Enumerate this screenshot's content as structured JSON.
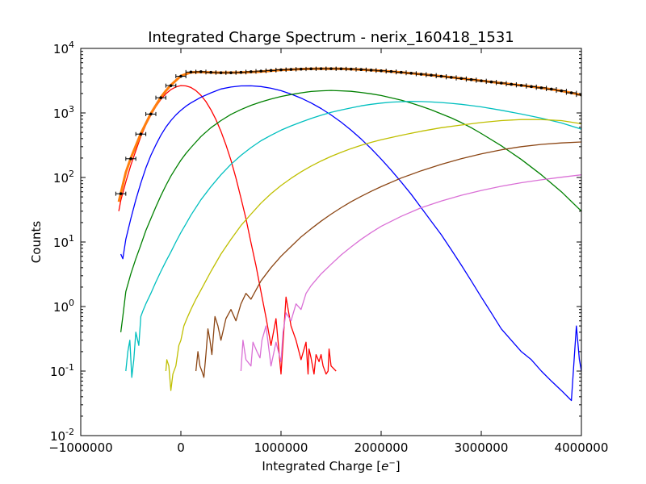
{
  "chart_data": {
    "type": "line",
    "title": "Integrated Charge Spectrum - nerix_160418_1531",
    "xlabel_prefix": "Integrated Charge [",
    "xlabel_math": "e",
    "xlabel_sup": "−",
    "xlabel_suffix": "]",
    "ylabel": "Counts",
    "y_scale": "log",
    "xlim": [
      -1000000,
      4000000
    ],
    "ylim": [
      0.01,
      10000
    ],
    "x_ticks": [
      {
        "value": -1000000,
        "label": "−1000000"
      },
      {
        "value": 0,
        "label": "0"
      },
      {
        "value": 1000000,
        "label": "1000000"
      },
      {
        "value": 2000000,
        "label": "2000000"
      },
      {
        "value": 3000000,
        "label": "3000000"
      },
      {
        "value": 4000000,
        "label": "4000000"
      }
    ],
    "y_ticks": [
      {
        "value": 0.01,
        "base": "10",
        "exp": "-2"
      },
      {
        "value": 0.1,
        "base": "10",
        "exp": "-1"
      },
      {
        "value": 1,
        "base": "10",
        "exp": "0"
      },
      {
        "value": 10,
        "base": "10",
        "exp": "1"
      },
      {
        "value": 100,
        "base": "10",
        "exp": "2"
      },
      {
        "value": 1000,
        "base": "10",
        "exp": "3"
      },
      {
        "value": 10000,
        "base": "10",
        "exp": "4"
      }
    ],
    "data_points": {
      "color": "#000000",
      "x_error": 50000,
      "x": [
        -600000,
        -500000,
        -400000,
        -300000,
        -200000,
        -100000,
        0,
        100000,
        200000,
        300000,
        400000,
        500000,
        600000,
        700000,
        800000,
        900000,
        1000000,
        1100000,
        1200000,
        1300000,
        1400000,
        1500000,
        1600000,
        1700000,
        1800000,
        1900000,
        2000000,
        2100000,
        2200000,
        2300000,
        2400000,
        2500000,
        2600000,
        2700000,
        2800000,
        2900000,
        3000000,
        3100000,
        3200000,
        3300000,
        3400000,
        3500000,
        3600000,
        3700000,
        3800000,
        3900000,
        4000000
      ],
      "y": [
        56,
        195,
        470,
        960,
        1720,
        2650,
        3700,
        4300,
        4350,
        4250,
        4200,
        4200,
        4250,
        4350,
        4450,
        4550,
        4650,
        4720,
        4780,
        4820,
        4850,
        4850,
        4830,
        4780,
        4700,
        4600,
        4500,
        4380,
        4250,
        4120,
        3980,
        3850,
        3700,
        3560,
        3420,
        3280,
        3150,
        3020,
        2900,
        2780,
        2670,
        2560,
        2450,
        2340,
        2200,
        2050,
        1900
      ]
    },
    "total_fit": {
      "color": "#ff7f0e",
      "x": [
        -620000,
        -550000,
        -500000,
        -400000,
        -300000,
        -200000,
        -150000,
        -100000,
        0,
        100000,
        200000,
        300000,
        400000,
        600000,
        800000,
        1000000,
        1200000,
        1400000,
        1600000,
        1800000,
        2000000,
        2200000,
        2400000,
        2600000,
        2800000,
        3000000,
        3200000,
        3400000,
        3600000,
        3800000,
        4000000
      ],
      "y": [
        42,
        120,
        200,
        480,
        980,
        1750,
        2200,
        2700,
        3750,
        4250,
        4300,
        4230,
        4200,
        4230,
        4380,
        4620,
        4780,
        4850,
        4830,
        4700,
        4500,
        4250,
        3980,
        3700,
        3420,
        3150,
        2900,
        2670,
        2450,
        2200,
        1900
      ]
    },
    "series": [
      {
        "color": "#ff0000",
        "x": [
          -620000,
          -600000,
          -550000,
          -500000,
          -450000,
          -400000,
          -350000,
          -300000,
          -250000,
          -200000,
          -150000,
          -100000,
          -50000,
          0,
          50000,
          100000,
          150000,
          200000,
          250000,
          300000,
          350000,
          400000,
          450000,
          500000,
          550000,
          600000,
          650000,
          700000,
          750000,
          800000,
          850000,
          900000,
          950000,
          1000000,
          1050000,
          1100000,
          1150000,
          1200000,
          1250000,
          1270000,
          1280000,
          1300000,
          1330000,
          1350000,
          1380000,
          1400000,
          1420000,
          1450000,
          1470000,
          1480000,
          1500000,
          1550000
        ],
        "y": [
          30,
          44,
          85,
          155,
          260,
          430,
          650,
          920,
          1250,
          1620,
          1980,
          2300,
          2530,
          2650,
          2620,
          2480,
          2220,
          1880,
          1500,
          1120,
          790,
          520,
          320,
          185,
          98,
          48,
          23,
          9.8,
          4.3,
          1.7,
          0.68,
          0.25,
          0.65,
          0.09,
          1.4,
          0.5,
          0.3,
          0.15,
          0.28,
          0.09,
          0.22,
          0.16,
          0.09,
          0.18,
          0.14,
          0.18,
          0.12,
          0.09,
          0.1,
          0.22,
          0.12,
          0.1
        ]
      },
      {
        "color": "#0000ff",
        "x": [
          -600000,
          -580000,
          -550000,
          -500000,
          -450000,
          -400000,
          -350000,
          -300000,
          -250000,
          -200000,
          -150000,
          -100000,
          -50000,
          0,
          50000,
          100000,
          200000,
          300000,
          400000,
          500000,
          600000,
          700000,
          800000,
          900000,
          1000000,
          1100000,
          1200000,
          1300000,
          1400000,
          1500000,
          1600000,
          1700000,
          1800000,
          1900000,
          2000000,
          2100000,
          2200000,
          2300000,
          2400000,
          2500000,
          2600000,
          2700000,
          2800000,
          2900000,
          3000000,
          3100000,
          3200000,
          3300000,
          3400000,
          3500000,
          3600000,
          3700000,
          3800000,
          3900000,
          3950000,
          3980000,
          4000000
        ],
        "y": [
          6.5,
          5.5,
          11,
          23,
          45,
          82,
          140,
          220,
          320,
          450,
          600,
          760,
          930,
          1100,
          1270,
          1430,
          1750,
          2050,
          2350,
          2520,
          2620,
          2630,
          2560,
          2410,
          2210,
          1960,
          1700,
          1430,
          1170,
          930,
          720,
          540,
          395,
          280,
          193,
          130,
          85,
          55,
          34,
          21,
          13,
          7.6,
          4.4,
          2.5,
          1.4,
          0.8,
          0.45,
          0.3,
          0.2,
          0.15,
          0.1,
          0.07,
          0.05,
          0.035,
          0.5,
          0.15,
          0.1
        ]
      },
      {
        "color": "#008000",
        "x": [
          -600000,
          -580000,
          -550000,
          -500000,
          -450000,
          -400000,
          -350000,
          -300000,
          -250000,
          -200000,
          -150000,
          -100000,
          -50000,
          0,
          50000,
          100000,
          200000,
          300000,
          400000,
          500000,
          600000,
          700000,
          800000,
          900000,
          1000000,
          1100000,
          1200000,
          1300000,
          1400000,
          1500000,
          1600000,
          1700000,
          1800000,
          1900000,
          2000000,
          2100000,
          2200000,
          2300000,
          2400000,
          2500000,
          2600000,
          2700000,
          2800000,
          2900000,
          3000000,
          3200000,
          3400000,
          3600000,
          3800000,
          4000000
        ],
        "y": [
          0.4,
          0.7,
          1.7,
          3.2,
          5.5,
          9,
          15,
          23,
          35,
          52,
          75,
          105,
          140,
          185,
          235,
          290,
          430,
          590,
          760,
          950,
          1130,
          1310,
          1480,
          1640,
          1800,
          1930,
          2050,
          2150,
          2200,
          2230,
          2200,
          2160,
          2080,
          1980,
          1860,
          1720,
          1580,
          1420,
          1270,
          1120,
          970,
          840,
          710,
          590,
          480,
          310,
          190,
          110,
          60,
          30
        ]
      },
      {
        "color": "#00bfbf",
        "x": [
          -550000,
          -530000,
          -510000,
          -490000,
          -470000,
          -450000,
          -420000,
          -400000,
          -380000,
          -350000,
          -300000,
          -250000,
          -200000,
          -150000,
          -100000,
          -50000,
          0,
          50000,
          100000,
          200000,
          300000,
          400000,
          500000,
          600000,
          700000,
          800000,
          900000,
          1000000,
          1100000,
          1200000,
          1300000,
          1400000,
          1500000,
          1600000,
          1700000,
          1800000,
          1900000,
          2000000,
          2100000,
          2200000,
          2300000,
          2400000,
          2500000,
          2600000,
          2700000,
          2800000,
          2900000,
          3000000,
          3200000,
          3400000,
          3600000,
          3800000,
          4000000
        ],
        "y": [
          0.1,
          0.2,
          0.3,
          0.08,
          0.15,
          0.4,
          0.25,
          0.7,
          0.85,
          1.1,
          1.6,
          2.4,
          3.5,
          5,
          7,
          10,
          14,
          19,
          26,
          45,
          72,
          110,
          160,
          220,
          290,
          370,
          450,
          540,
          630,
          720,
          820,
          920,
          1020,
          1110,
          1200,
          1290,
          1360,
          1420,
          1470,
          1490,
          1510,
          1500,
          1480,
          1450,
          1410,
          1360,
          1300,
          1240,
          1100,
          960,
          830,
          700,
          560
        ]
      },
      {
        "color": "#bfbf00",
        "x": [
          -150000,
          -140000,
          -120000,
          -100000,
          -80000,
          -50000,
          -20000,
          0,
          30000,
          60000,
          100000,
          150000,
          200000,
          300000,
          400000,
          500000,
          600000,
          700000,
          800000,
          900000,
          1000000,
          1100000,
          1200000,
          1300000,
          1400000,
          1500000,
          1600000,
          1700000,
          1800000,
          1900000,
          2000000,
          2200000,
          2400000,
          2600000,
          2800000,
          3000000,
          3200000,
          3400000,
          3600000,
          3800000,
          4000000
        ],
        "y": [
          0.1,
          0.15,
          0.12,
          0.05,
          0.09,
          0.12,
          0.25,
          0.3,
          0.5,
          0.65,
          0.9,
          1.3,
          1.8,
          3.5,
          6.5,
          11,
          18,
          27,
          40,
          56,
          75,
          97,
          122,
          150,
          180,
          212,
          245,
          280,
          315,
          350,
          385,
          450,
          520,
          590,
          650,
          710,
          760,
          790,
          790,
          760,
          680
        ]
      },
      {
        "color": "#8b4513",
        "x": [
          150000,
          170000,
          190000,
          210000,
          230000,
          250000,
          270000,
          290000,
          310000,
          340000,
          370000,
          400000,
          450000,
          500000,
          550000,
          600000,
          650000,
          700000,
          800000,
          900000,
          1000000,
          1100000,
          1200000,
          1300000,
          1400000,
          1500000,
          1600000,
          1700000,
          1800000,
          1900000,
          2000000,
          2200000,
          2400000,
          2600000,
          2800000,
          3000000,
          3200000,
          3400000,
          3600000,
          3800000,
          4000000
        ],
        "y": [
          0.1,
          0.2,
          0.12,
          0.1,
          0.08,
          0.18,
          0.45,
          0.3,
          0.18,
          0.7,
          0.5,
          0.3,
          0.65,
          0.9,
          0.6,
          1.1,
          1.6,
          1.3,
          2.5,
          4,
          6,
          8.5,
          12,
          16,
          21,
          27,
          34,
          42,
          51,
          61,
          72,
          98,
          127,
          160,
          195,
          232,
          268,
          300,
          325,
          343,
          355
        ]
      },
      {
        "color": "#da70d6",
        "x": [
          600000,
          620000,
          650000,
          700000,
          720000,
          760000,
          790000,
          810000,
          850000,
          900000,
          950000,
          1000000,
          1020000,
          1050000,
          1100000,
          1150000,
          1200000,
          1250000,
          1300000,
          1400000,
          1500000,
          1600000,
          1700000,
          1800000,
          1900000,
          2000000,
          2200000,
          2400000,
          2600000,
          2800000,
          3000000,
          3200000,
          3400000,
          3600000,
          3800000,
          4000000
        ],
        "y": [
          0.1,
          0.3,
          0.15,
          0.12,
          0.28,
          0.2,
          0.16,
          0.3,
          0.5,
          0.12,
          0.28,
          0.14,
          0.4,
          0.8,
          0.6,
          1.1,
          0.9,
          1.6,
          2.1,
          3.2,
          4.5,
          6.3,
          8.4,
          11,
          14,
          17.5,
          25,
          34,
          43,
          53,
          63,
          73,
          83,
          92,
          101,
          110
        ]
      }
    ]
  }
}
